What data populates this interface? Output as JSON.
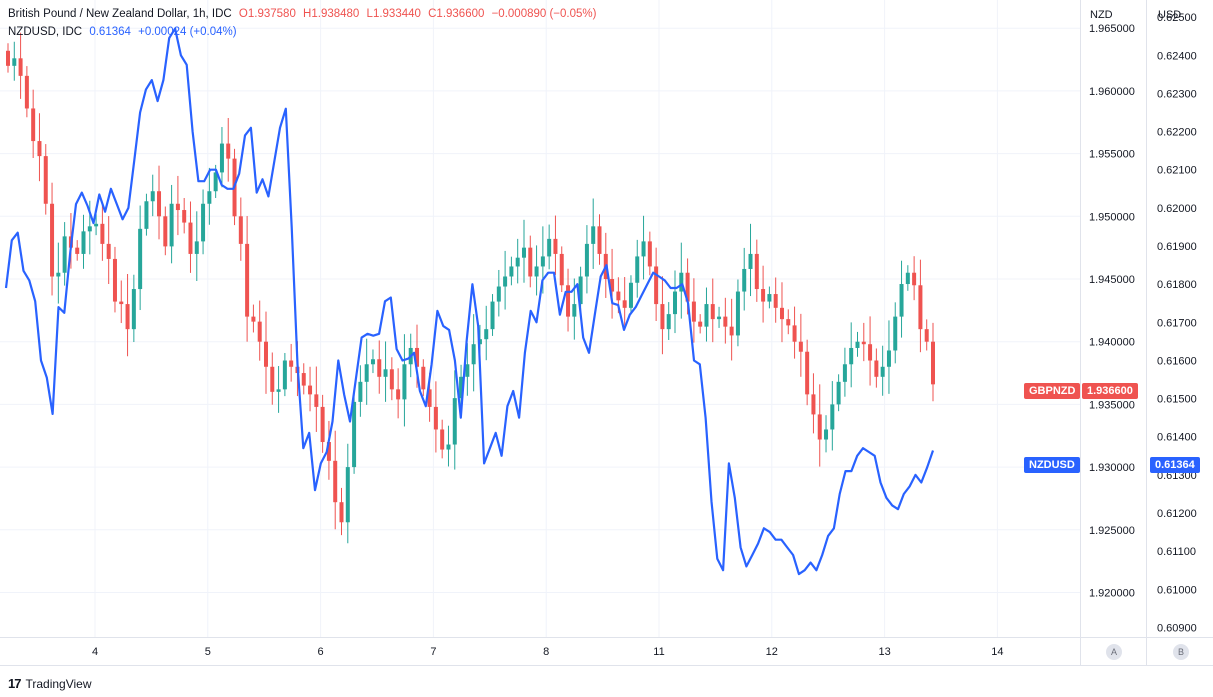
{
  "legend": {
    "main": {
      "title": "British Pound / New Zealand Dollar, 1h, IDC",
      "o_label": "O",
      "o_value": "1.937580",
      "h_label": "H",
      "h_value": "1.938480",
      "l_label": "L",
      "l_value": "1.933440",
      "c_label": "C",
      "c_value": "1.936600",
      "change": "−0.000890 (−0.05%)"
    },
    "overlay": {
      "title": "NZDUSD, IDC",
      "value": "0.61364",
      "change": "+0.00024 (+0.04%)"
    }
  },
  "axes": {
    "left_head": "NZD",
    "right_head": "USD",
    "scale_a": "A",
    "scale_b": "B"
  },
  "tags": {
    "gbpnzd_name": "GBPNZD",
    "gbpnzd_value": "1.936600",
    "nzdusd_name": "NZDUSD",
    "nzdusd_value": "0.61364"
  },
  "footer": {
    "logo": "17",
    "brand": "TradingView"
  },
  "colors": {
    "up": "#26a69a",
    "down": "#ef5350",
    "overlay": "#2962ff",
    "grid": "#f0f3fa"
  },
  "chart_data": {
    "type": "candlestick+line",
    "x_ticks": [
      "4",
      "5",
      "6",
      "7",
      "8",
      "11",
      "12",
      "13",
      "14"
    ],
    "gbpnzd_axis": {
      "ticks": [
        "1.965000",
        "1.960000",
        "1.955000",
        "1.950000",
        "1.945000",
        "1.940000",
        "1.935000",
        "1.930000",
        "1.925000",
        "1.920000"
      ],
      "range": [
        1.91645,
        1.96725
      ]
    },
    "nzdusd_axis": {
      "ticks": [
        "0.62500",
        "0.62400",
        "0.62300",
        "0.62200",
        "0.62100",
        "0.62000",
        "0.61900",
        "0.61800",
        "0.61700",
        "0.61600",
        "0.61500",
        "0.61400",
        "0.61300",
        "0.61200",
        "0.61100",
        "0.61000",
        "0.60900"
      ],
      "range": [
        0.60875,
        0.62545
      ]
    },
    "gbpnzd_closes": [
      1.962,
      1.9626,
      1.9612,
      1.9586,
      1.956,
      1.9548,
      1.951,
      1.9452,
      1.9455,
      1.9484,
      1.9475,
      1.947,
      1.9488,
      1.9492,
      1.9494,
      1.9478,
      1.9466,
      1.9432,
      1.943,
      1.941,
      1.9442,
      1.949,
      1.9512,
      1.952,
      1.95,
      1.9476,
      1.951,
      1.9505,
      1.9495,
      1.947,
      1.948,
      1.951,
      1.952,
      1.9535,
      1.9558,
      1.9546,
      1.95,
      1.9478,
      1.942,
      1.9416,
      1.94,
      1.938,
      1.936,
      1.9362,
      1.9385,
      1.938,
      1.9375,
      1.9365,
      1.9358,
      1.9348,
      1.932,
      1.9305,
      1.9272,
      1.9256,
      1.93,
      1.9352,
      1.9368,
      1.9382,
      1.9386,
      1.9372,
      1.9378,
      1.9362,
      1.9354,
      1.9382,
      1.9395,
      1.938,
      1.9362,
      1.9348,
      1.933,
      1.9314,
      1.9318,
      1.9355,
      1.9372,
      1.9382,
      1.9398,
      1.9402,
      1.941,
      1.9432,
      1.9444,
      1.9452,
      1.946,
      1.9467,
      1.9475,
      1.9452,
      1.946,
      1.9468,
      1.9482,
      1.947,
      1.9445,
      1.942,
      1.943,
      1.9452,
      1.9478,
      1.9492,
      1.947,
      1.945,
      1.944,
      1.9433,
      1.9427,
      1.9447,
      1.9468,
      1.948,
      1.946,
      1.943,
      1.941,
      1.9422,
      1.944,
      1.9455,
      1.9432,
      1.9416,
      1.9412,
      1.943,
      1.9418,
      1.942,
      1.9412,
      1.9405,
      1.944,
      1.9458,
      1.947,
      1.9442,
      1.9432,
      1.9438,
      1.9427,
      1.9418,
      1.9413,
      1.94,
      1.9392,
      1.9358,
      1.9342,
      1.9322,
      1.933,
      1.935,
      1.9368,
      1.9382,
      1.9395,
      1.94,
      1.9398,
      1.9385,
      1.9372,
      1.938,
      1.9393,
      1.942,
      1.9446,
      1.9455,
      1.9445,
      1.941,
      1.94,
      1.9366
    ],
    "nzdusd_closes": [
      0.6179,
      0.61915,
      0.61935,
      0.61835,
      0.6181,
      0.61755,
      0.616,
      0.61555,
      0.6146,
      0.6174,
      0.61725,
      0.6188,
      0.6201,
      0.6204,
      0.62005,
      0.6196,
      0.62035,
      0.6199,
      0.6205,
      0.6201,
      0.6197,
      0.62,
      0.62125,
      0.6225,
      0.6231,
      0.62335,
      0.6228,
      0.62335,
      0.62445,
      0.6247,
      0.624,
      0.62375,
      0.622,
      0.6207,
      0.6207,
      0.621,
      0.621,
      0.6206,
      0.6205,
      0.6205,
      0.6209,
      0.6219,
      0.6221,
      0.6204,
      0.62075,
      0.6203,
      0.6212,
      0.6221,
      0.6226,
      0.6195,
      0.6159,
      0.6137,
      0.6141,
      0.6126,
      0.6133,
      0.6136,
      0.6144,
      0.616,
      0.6151,
      0.6144,
      0.6155,
      0.6166,
      0.6167,
      0.61665,
      0.6167,
      0.61755,
      0.61765,
      0.6163,
      0.616,
      0.61605,
      0.6162,
      0.6152,
      0.6148,
      0.6159,
      0.6173,
      0.6169,
      0.6168,
      0.616,
      0.6145,
      0.6165,
      0.618,
      0.6169,
      0.6133,
      0.6137,
      0.6141,
      0.6135,
      0.6148,
      0.6152,
      0.6145,
      0.6162,
      0.6173,
      0.617,
      0.6181,
      0.6183,
      0.6183,
      0.6172,
      0.6178,
      0.6178,
      0.618,
      0.6166,
      0.6162,
      0.6172,
      0.6182,
      0.6185,
      0.6175,
      0.61745,
      0.6168,
      0.6172,
      0.6174,
      0.6177,
      0.618,
      0.6183,
      0.6182,
      0.6181,
      0.6179,
      0.6179,
      0.618,
      0.6175,
      0.616,
      0.6159,
      0.6145,
      0.6123,
      0.6108,
      0.6105,
      0.6133,
      0.6124,
      0.6111,
      0.6106,
      0.6109,
      0.6112,
      0.6116,
      0.6115,
      0.6113,
      0.6113,
      0.6111,
      0.6109,
      0.6104,
      0.6105,
      0.6107,
      0.6105,
      0.6109,
      0.6114,
      0.6116,
      0.6125,
      0.6131,
      0.6131,
      0.6135,
      0.6137,
      0.6136,
      0.6135,
      0.6128,
      0.6124,
      0.6122,
      0.6121,
      0.6125,
      0.6127,
      0.613,
      0.6128,
      0.6132,
      0.61364
    ]
  }
}
